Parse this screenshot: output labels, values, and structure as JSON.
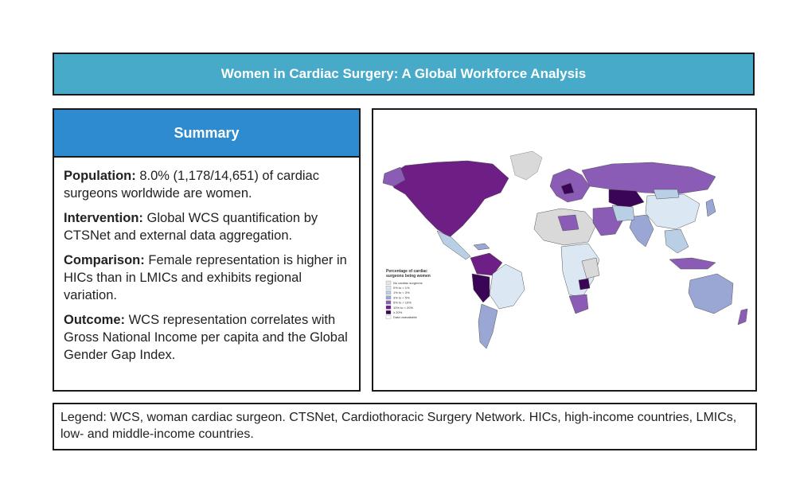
{
  "title": "Women in Cardiac Surgery: A Global Workforce Analysis",
  "summary": {
    "header": "Summary",
    "items": [
      {
        "key": "Population:",
        "text": "8.0% (1,178/14,651) of cardiac surgeons worldwide are women."
      },
      {
        "key": "Intervention:",
        "text": "Global WCS quantification by CTSNet and external data aggregation."
      },
      {
        "key": "Comparison:",
        "text": "Female representation is higher in HICs than in LMICs and exhibits regional variation."
      },
      {
        "key": "Outcome:",
        "text": "WCS representation correlates with Gross National Income per capita and the Global Gender Gap Index."
      }
    ]
  },
  "map": {
    "legend_title_line1": "Percentage of cardiac",
    "legend_title_line2": "surgeons being women",
    "legend_items": [
      {
        "label": "No cardiac surgeons",
        "color": "#e6e6e6"
      },
      {
        "label": "0% to < 1%",
        "color": "#dbe8f3"
      },
      {
        "label": "1% to < 3%",
        "color": "#b8cfe6"
      },
      {
        "label": "3% to < 5%",
        "color": "#9aa6d4"
      },
      {
        "label": "5% to < 10%",
        "color": "#8a5cb5"
      },
      {
        "label": "10% to < 20%",
        "color": "#6d1f86"
      },
      {
        "label": "≥ 20%",
        "color": "#3b0557"
      },
      {
        "label": "Data unavailable",
        "color": "#ffffff"
      }
    ]
  },
  "legend": {
    "text": "Legend: WCS, woman cardiac surgeon. CTSNet, Cardiothoracic Surgery Network. HICs, high-income countries, LMICs, low- and middle-income countries."
  }
}
